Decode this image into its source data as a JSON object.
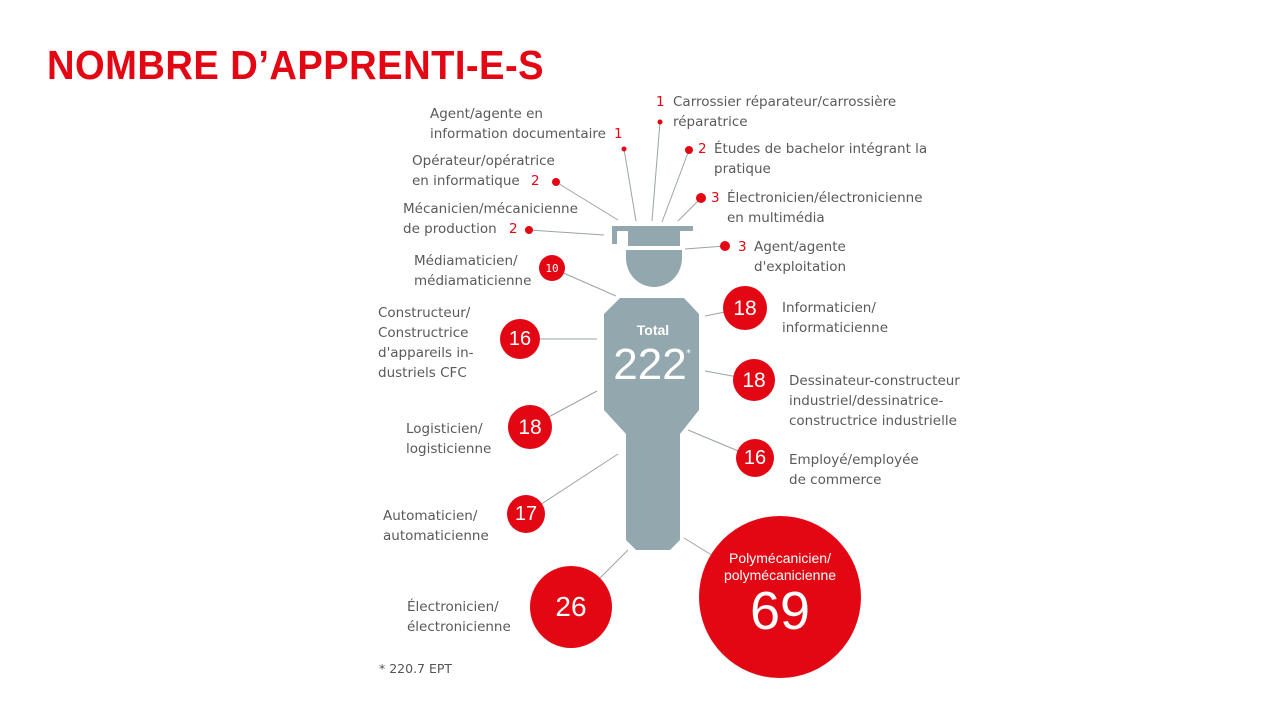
{
  "title": "NOMBRE D’APPRENTI-E-S",
  "total": {
    "label": "Total",
    "value": "222",
    "marker": "*"
  },
  "footnote": "* 220.7 EPT",
  "colors": {
    "accent": "#e30613",
    "figure": "#93a7ae",
    "text": "#595959"
  },
  "figure_icon": "graduate-figure-icon",
  "items": [
    {
      "label": "Agent/agente en\ninformation documentaire",
      "value": "1"
    },
    {
      "label": "Carrossier réparateur/carrossière\nréparatrice",
      "value": "1"
    },
    {
      "label": "Études de bachelor intégrant la\npratique",
      "value": "2"
    },
    {
      "label": "Opérateur/opératrice\nen informatique",
      "value": "2"
    },
    {
      "label": "Électronicien/électronicienne\nen multimédia",
      "value": "3"
    },
    {
      "label": "Mécanicien/mécanicienne\nde production",
      "value": "2"
    },
    {
      "label": "Agent/agente\nd'exploitation",
      "value": "3"
    },
    {
      "label": "Médiamaticien/\nmédiamaticienne",
      "value": "10"
    },
    {
      "label": "Informaticien/\ninformaticienne",
      "value": "18"
    },
    {
      "label": "Constructeur/\nConstructrice\nd'appareils in-\ndustriels CFC",
      "value": "16"
    },
    {
      "label": "Dessinateur-constructeur\nindustriel/dessinatrice-\nconstructrice industrielle",
      "value": "18"
    },
    {
      "label": "Logisticien/\nlogisticienne",
      "value": "18"
    },
    {
      "label": "Employé/employée\nde commerce",
      "value": "16"
    },
    {
      "label": "Automaticien/\nautomaticienne",
      "value": "17"
    },
    {
      "label": "Électronicien/\nélectronicienne",
      "value": "26"
    },
    {
      "label": "Polymécanicien/\npolymécanicienne",
      "value": "69"
    }
  ]
}
